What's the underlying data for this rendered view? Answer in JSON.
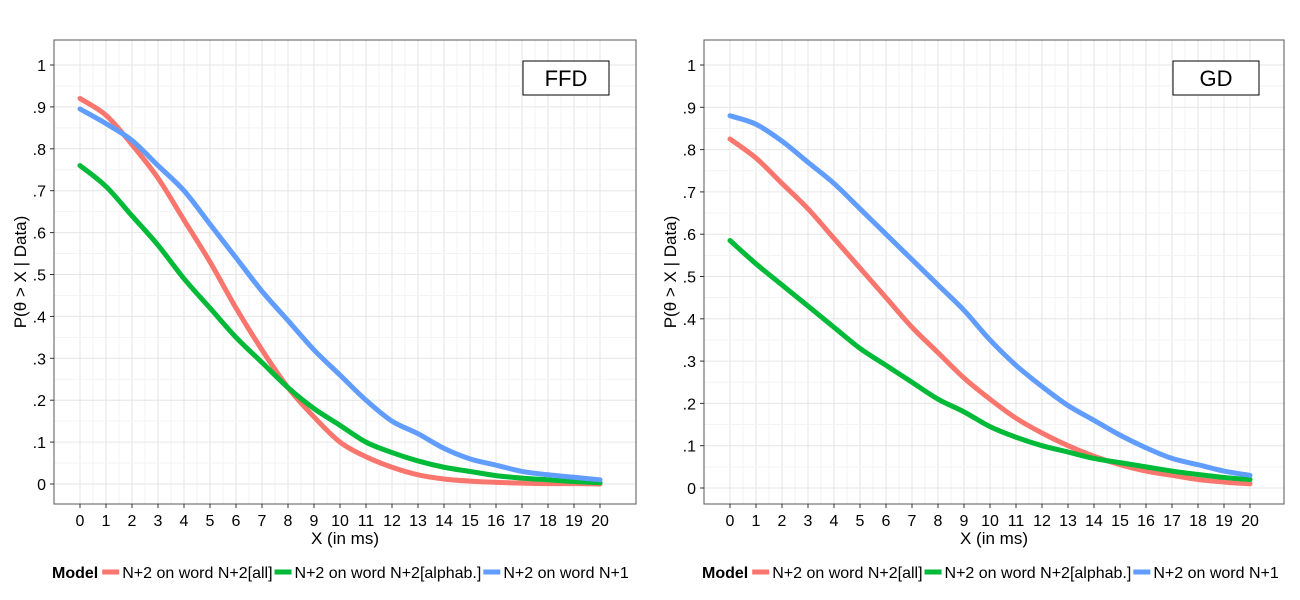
{
  "chart_data": [
    {
      "type": "line",
      "panel_label": "FFD",
      "xlabel": "X (in ms)",
      "ylabel": "P(θ > X | Data)",
      "xlim": [
        0,
        20
      ],
      "ylim": [
        0,
        1
      ],
      "x_ticks": [
        "0",
        "1",
        "2",
        "3",
        "4",
        "5",
        "6",
        "7",
        "8",
        "9",
        "10",
        "11",
        "12",
        "13",
        "14",
        "15",
        "16",
        "17",
        "18",
        "19",
        "20"
      ],
      "y_ticks": [
        "0",
        ".1",
        ".2",
        ".3",
        ".4",
        ".5",
        ".6",
        ".7",
        ".8",
        ".9",
        "1"
      ],
      "grid": true,
      "x": [
        0,
        1,
        2,
        3,
        4,
        5,
        6,
        7,
        8,
        9,
        10,
        11,
        12,
        13,
        14,
        15,
        16,
        17,
        18,
        19,
        20
      ],
      "series": [
        {
          "name": "N+2 on word N+2[all]",
          "color": "#F8766D",
          "values": [
            0.92,
            0.88,
            0.81,
            0.73,
            0.63,
            0.53,
            0.42,
            0.32,
            0.23,
            0.16,
            0.1,
            0.065,
            0.04,
            0.022,
            0.012,
            0.007,
            0.004,
            0.002,
            0.001,
            0.001,
            0.0
          ]
        },
        {
          "name": "N+2 on word N+2[alphab.]",
          "color": "#00BA38",
          "values": [
            0.76,
            0.71,
            0.64,
            0.57,
            0.49,
            0.42,
            0.35,
            0.29,
            0.23,
            0.18,
            0.14,
            0.1,
            0.075,
            0.055,
            0.04,
            0.03,
            0.02,
            0.014,
            0.01,
            0.006,
            0.003
          ]
        },
        {
          "name": "N+2 on word N+1",
          "color": "#619CFF",
          "values": [
            0.895,
            0.86,
            0.82,
            0.76,
            0.7,
            0.62,
            0.54,
            0.46,
            0.39,
            0.32,
            0.26,
            0.2,
            0.15,
            0.12,
            0.085,
            0.06,
            0.045,
            0.03,
            0.022,
            0.016,
            0.01
          ]
        }
      ]
    },
    {
      "type": "line",
      "panel_label": "GD",
      "xlabel": "X (in ms)",
      "ylabel": "P(θ > X | Data)",
      "xlim": [
        0,
        20
      ],
      "ylim": [
        0,
        1
      ],
      "x_ticks": [
        "0",
        "1",
        "2",
        "3",
        "4",
        "5",
        "6",
        "7",
        "8",
        "9",
        "10",
        "11",
        "12",
        "13",
        "14",
        "15",
        "16",
        "17",
        "18",
        "19",
        "20"
      ],
      "y_ticks": [
        "0",
        ".1",
        ".2",
        ".3",
        ".4",
        ".5",
        ".6",
        ".7",
        ".8",
        ".9",
        "1"
      ],
      "grid": true,
      "x": [
        0,
        1,
        2,
        3,
        4,
        5,
        6,
        7,
        8,
        9,
        10,
        11,
        12,
        13,
        14,
        15,
        16,
        17,
        18,
        19,
        20
      ],
      "series": [
        {
          "name": "N+2 on word N+2[all]",
          "color": "#F8766D",
          "values": [
            0.825,
            0.78,
            0.72,
            0.66,
            0.59,
            0.52,
            0.45,
            0.38,
            0.32,
            0.26,
            0.21,
            0.165,
            0.13,
            0.1,
            0.075,
            0.055,
            0.04,
            0.03,
            0.02,
            0.014,
            0.01
          ]
        },
        {
          "name": "N+2 on word N+2[alphab.]",
          "color": "#00BA38",
          "values": [
            0.585,
            0.53,
            0.48,
            0.43,
            0.38,
            0.33,
            0.29,
            0.25,
            0.21,
            0.18,
            0.145,
            0.12,
            0.1,
            0.085,
            0.07,
            0.06,
            0.05,
            0.04,
            0.032,
            0.025,
            0.02
          ]
        },
        {
          "name": "N+2 on word N+1",
          "color": "#619CFF",
          "values": [
            0.88,
            0.86,
            0.82,
            0.77,
            0.72,
            0.66,
            0.6,
            0.54,
            0.48,
            0.42,
            0.35,
            0.29,
            0.24,
            0.195,
            0.16,
            0.125,
            0.095,
            0.07,
            0.055,
            0.04,
            0.03
          ]
        }
      ]
    }
  ],
  "legend": {
    "title": "Model",
    "placement": "bottom",
    "items": [
      {
        "label": "N+2 on word N+2[all]",
        "color": "#F8766D"
      },
      {
        "label": "N+2 on word N+2[alphab.]",
        "color": "#00BA38"
      },
      {
        "label": "N+2 on word N+1",
        "color": "#619CFF"
      }
    ]
  }
}
